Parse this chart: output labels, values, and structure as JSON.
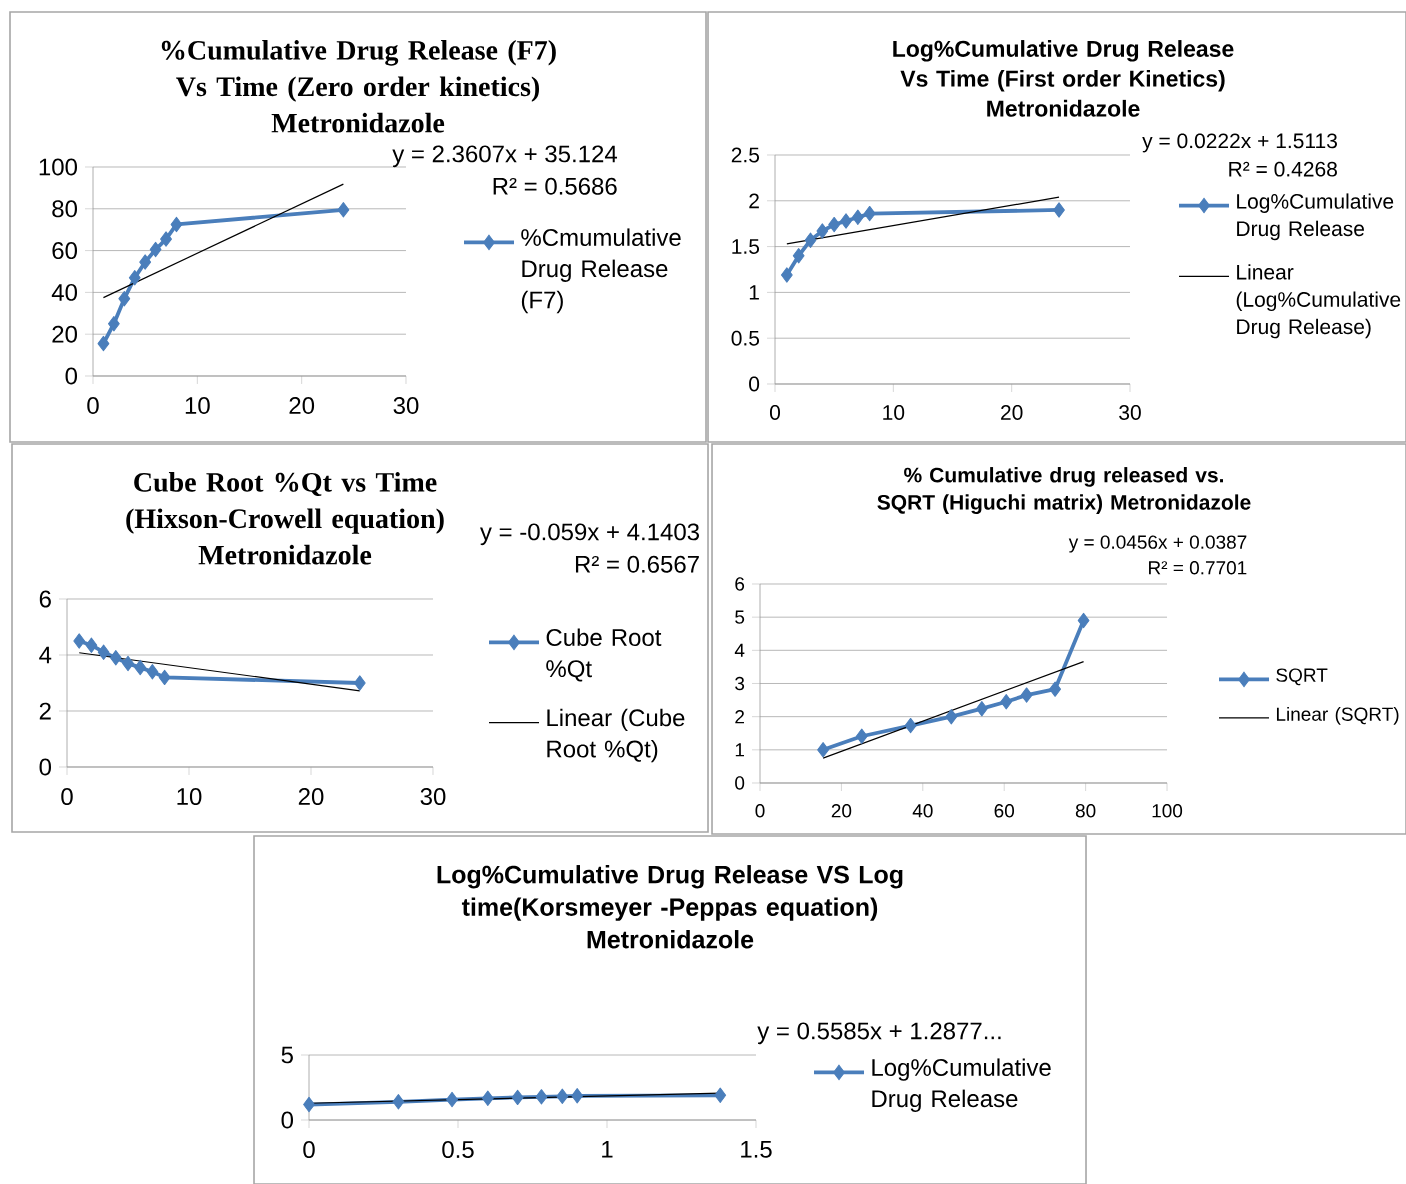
{
  "chart_data": [
    {
      "type": "line",
      "title": "%Cumulative Drug Release (F7) Vs Time (Zero order kinetics)",
      "subtitle": "Metronidazole",
      "x": [
        1,
        2,
        3,
        4,
        5,
        6,
        7,
        8,
        24
      ],
      "series": [
        {
          "name": "%Cmumulative Drug Release (F7)",
          "color": "#4a7ebb",
          "marker": "diamond",
          "values": [
            15.5,
            25,
            37,
            47,
            54.5,
            60.5,
            65.5,
            72.5,
            79.5
          ]
        },
        {
          "type": "line",
          "color": "#000000",
          "marker": "none",
          "x": [
            1,
            24
          ],
          "values": [
            37.5,
            91.8
          ]
        }
      ],
      "xlim": [
        0,
        30
      ],
      "ylim": [
        0,
        100
      ],
      "xticks": [
        0,
        10,
        20,
        30
      ],
      "yticks": [
        0,
        20,
        40,
        60,
        80,
        100
      ],
      "grid": "y",
      "legend": "right",
      "annotations": [
        "y = 2.3607x + 35.124",
        "R² = 0.5686"
      ]
    },
    {
      "type": "line",
      "title": "Log%Cumulative Drug Release Vs Time (First order Kinetics)",
      "subtitle": "Metronidazole",
      "x": [
        1,
        2,
        3,
        4,
        5,
        6,
        7,
        8,
        24
      ],
      "series": [
        {
          "name": "Log%Cumulative Drug Release",
          "color": "#4a7ebb",
          "marker": "diamond",
          "values": [
            1.19,
            1.4,
            1.57,
            1.67,
            1.74,
            1.78,
            1.82,
            1.86,
            1.9
          ]
        },
        {
          "name": "Linear (Log%Cumulative Drug Release)",
          "type": "line",
          "color": "#000000",
          "marker": "none",
          "x": [
            1,
            24
          ],
          "values": [
            1.53,
            2.04
          ]
        }
      ],
      "xlim": [
        0,
        30
      ],
      "ylim": [
        0,
        2.5
      ],
      "xticks": [
        0,
        10,
        20,
        30
      ],
      "yticks": [
        0,
        0.5,
        1,
        1.5,
        2,
        2.5
      ],
      "grid": "y",
      "legend": "right",
      "annotations": [
        "y = 0.0222x + 1.5113",
        "R² = 0.4268"
      ]
    },
    {
      "type": "line",
      "title": "Cube Root %Qt vs Time (Hixson-Crowell equation)",
      "subtitle": "Metronidazole",
      "x": [
        1,
        2,
        3,
        4,
        5,
        6,
        7,
        8,
        24
      ],
      "series": [
        {
          "name": "Cube Root %Qt",
          "color": "#4a7ebb",
          "marker": "diamond",
          "values": [
            4.5,
            4.35,
            4.1,
            3.9,
            3.7,
            3.55,
            3.4,
            3.2,
            3.0
          ]
        },
        {
          "name": "Linear (Cube Root %Qt)",
          "type": "line",
          "color": "#000000",
          "marker": "none",
          "x": [
            1,
            24
          ],
          "values": [
            4.08,
            2.72
          ]
        }
      ],
      "xlim": [
        0,
        30
      ],
      "ylim": [
        0,
        6
      ],
      "xticks": [
        0,
        10,
        20,
        30
      ],
      "yticks": [
        0,
        2,
        4,
        6
      ],
      "grid": "y",
      "legend": "right",
      "annotations": [
        "y = -0.059x + 4.1403",
        "R² = 0.6567"
      ]
    },
    {
      "type": "line",
      "title": "% Cumulative drug released vs. SQRT (Higuchi matrix) Metronidazole",
      "x": [
        15.5,
        25,
        37,
        47,
        54.5,
        60.5,
        65.5,
        72.5,
        79.5
      ],
      "series": [
        {
          "name": "SQRT",
          "color": "#4a7ebb",
          "marker": "diamond",
          "values": [
            1,
            1.41,
            1.73,
            2,
            2.24,
            2.45,
            2.65,
            2.83,
            4.9
          ]
        },
        {
          "name": "Linear (SQRT)",
          "type": "line",
          "color": "#000000",
          "marker": "none",
          "x": [
            15.5,
            79.5
          ],
          "values": [
            0.75,
            3.66
          ]
        }
      ],
      "xlim": [
        0,
        100
      ],
      "ylim": [
        0,
        6
      ],
      "xticks": [
        0,
        20,
        40,
        60,
        80,
        100
      ],
      "yticks": [
        0,
        1,
        2,
        3,
        4,
        5,
        6
      ],
      "grid": "y",
      "legend": "right",
      "annotations": [
        "y = 0.0456x + 0.0387",
        "R² = 0.7701"
      ]
    },
    {
      "type": "line",
      "title": "Log%Cumulative Drug Release VS Log time(Korsmeyer -Peppas equation)",
      "subtitle": "Metronidazole",
      "x": [
        0,
        0.3,
        0.48,
        0.6,
        0.7,
        0.78,
        0.85,
        0.9,
        1.38
      ],
      "series": [
        {
          "name": "Log%Cumulative Drug Release",
          "color": "#4a7ebb",
          "marker": "diamond",
          "values": [
            1.19,
            1.4,
            1.57,
            1.67,
            1.74,
            1.78,
            1.82,
            1.86,
            1.9
          ]
        },
        {
          "type": "line",
          "color": "#000000",
          "marker": "none",
          "x": [
            0,
            1.38
          ],
          "values": [
            1.29,
            2.06
          ]
        }
      ],
      "xlim": [
        0,
        1.5
      ],
      "ylim": [
        0,
        5
      ],
      "xticks": [
        0,
        0.5,
        1,
        1.5
      ],
      "yticks": [
        0,
        5
      ],
      "grid": "y",
      "legend": "right",
      "annotations": [
        "y = 0.5585x + 1.2877..."
      ]
    }
  ]
}
